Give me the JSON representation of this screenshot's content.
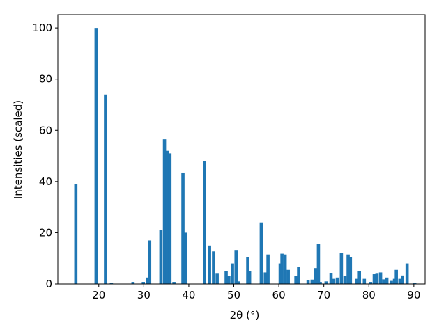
{
  "chart_data": {
    "type": "bar",
    "xlabel": "2θ (°)",
    "ylabel": "Intensities (scaled)",
    "x": [
      14.9,
      19.4,
      21.5,
      22.8,
      27.6,
      29.9,
      30.8,
      31.3,
      33.8,
      34.6,
      35.2,
      35.8,
      36.7,
      38.7,
      39.2,
      43.5,
      44.6,
      45.5,
      46.3,
      48.3,
      48.9,
      49.7,
      50.5,
      51.0,
      53.1,
      53.5,
      56.1,
      57.0,
      57.6,
      60.3,
      60.7,
      61.4,
      62.1,
      63.8,
      64.4,
      66.5,
      67.4,
      68.2,
      68.8,
      69.2,
      70.5,
      71.6,
      72.2,
      73.0,
      73.9,
      74.7,
      75.4,
      75.9,
      77.3,
      77.9,
      79.0,
      80.4,
      81.2,
      81.8,
      82.6,
      83.3,
      84.0,
      85.0,
      85.7,
      86.1,
      86.9,
      87.5,
      88.5,
      90.2
    ],
    "values": [
      39,
      100,
      74,
      0.3,
      0.8,
      0.8,
      2.5,
      17,
      21,
      56.5,
      52,
      51,
      0.8,
      43.5,
      20,
      48,
      15,
      12.7,
      4,
      5,
      3,
      8,
      13,
      1,
      10.5,
      5,
      24,
      4.5,
      11.5,
      8,
      11.8,
      11.5,
      5.5,
      3,
      6.7,
      1.5,
      1.7,
      6.2,
      15.5,
      0.8,
      1,
      4.3,
      2,
      2.5,
      12,
      3,
      11.5,
      10.5,
      2,
      5,
      2,
      0.8,
      3.8,
      4,
      4.5,
      1.8,
      2.5,
      1.2,
      2,
      5.5,
      2,
      3.3,
      8,
      0.3
    ],
    "color": "#1f77b4",
    "xlim": [
      10.9,
      92.5
    ],
    "xticks": [
      20,
      30,
      40,
      50,
      60,
      70,
      80,
      90
    ],
    "ylim": [
      0,
      105.2
    ],
    "yticks": [
      0,
      20,
      40,
      60,
      80,
      100
    ]
  }
}
